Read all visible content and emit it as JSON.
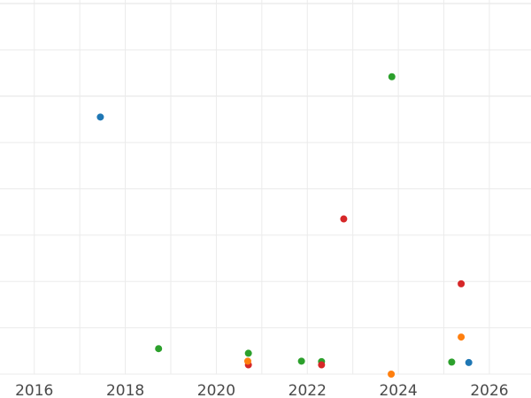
{
  "chart_data": {
    "type": "scatter",
    "title": "",
    "xlabel": "",
    "ylabel": "",
    "grid": true,
    "legend": "none",
    "x_axis": {
      "type": "date",
      "range": [
        "2015-04-01",
        "2026-12-01"
      ],
      "ticks": [
        "2016",
        "2018",
        "2020",
        "2022",
        "2024",
        "2026"
      ]
    },
    "y_axis": {
      "range": [
        0,
        8
      ],
      "tick_labels_visible": false
    },
    "colors": {
      "blue": "#1f77b4",
      "orange": "#ff7f0e",
      "green": "#2ca02c",
      "red": "#d62728"
    },
    "series": [
      {
        "color": "#1f77b4",
        "points": [
          {
            "x": "2017-06-15",
            "y": 5.55
          },
          {
            "x": "2025-07-20",
            "y": 0.25
          }
        ]
      },
      {
        "color": "#2ca02c",
        "points": [
          {
            "x": "2023-11-10",
            "y": 6.42
          },
          {
            "x": "2018-09-25",
            "y": 0.55
          },
          {
            "x": "2020-09-15",
            "y": 0.45
          },
          {
            "x": "2021-11-15",
            "y": 0.28
          },
          {
            "x": "2022-04-25",
            "y": 0.27
          },
          {
            "x": "2025-03-05",
            "y": 0.26
          }
        ]
      },
      {
        "color": "#d62728",
        "points": [
          {
            "x": "2022-10-20",
            "y": 3.35
          },
          {
            "x": "2025-05-20",
            "y": 1.95
          },
          {
            "x": "2020-09-15",
            "y": 0.2
          },
          {
            "x": "2022-04-25",
            "y": 0.2
          }
        ]
      },
      {
        "color": "#ff7f0e",
        "points": [
          {
            "x": "2025-05-20",
            "y": 0.8
          },
          {
            "x": "2020-09-10",
            "y": 0.28
          },
          {
            "x": "2023-11-05",
            "y": 0.0
          }
        ]
      }
    ]
  }
}
